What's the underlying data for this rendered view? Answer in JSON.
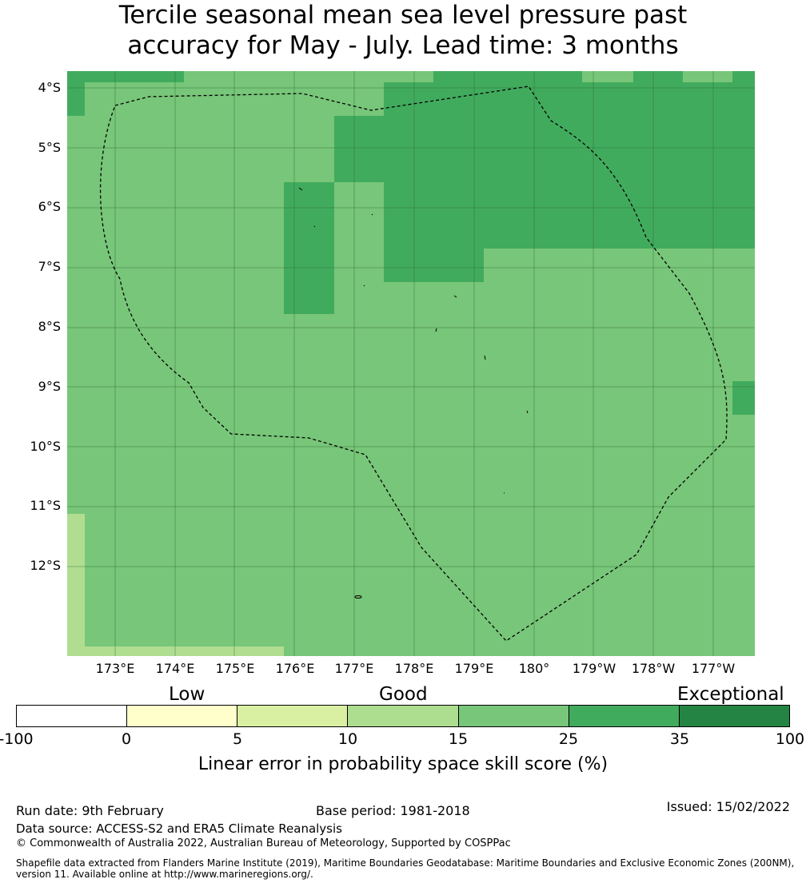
{
  "title": {
    "line1": "Tercile seasonal mean sea level pressure past",
    "line2": "accuracy for May - July. Lead time: 3 months"
  },
  "map": {
    "lat_labels": [
      "4°S",
      "5°S",
      "6°S",
      "7°S",
      "8°S",
      "9°S",
      "10°S",
      "11°S",
      "12°S"
    ],
    "lon_labels": [
      "173°E",
      "174°E",
      "175°E",
      "176°E",
      "177°E",
      "178°E",
      "179°E",
      "180°",
      "179°W",
      "178°W",
      "177°W"
    ],
    "colors": {
      "skill_10_15": "#b1dd91",
      "skill_15_25": "#78c679",
      "skill_25_35": "#41ab5d",
      "grid": "#2a6a35",
      "boundary": "#000000"
    }
  },
  "legend": {
    "categories": [
      "Low",
      "Good",
      "Exceptional"
    ],
    "ticks": [
      "-100",
      "0",
      "5",
      "10",
      "15",
      "25",
      "35",
      "100"
    ],
    "colors": [
      "#ffffff",
      "#ffffcc",
      "#d9f0a3",
      "#addd8e",
      "#78c679",
      "#41ab5d",
      "#238443"
    ],
    "label": "Linear error in probability space skill score (%)"
  },
  "footer": {
    "run_date": "Run date: 9th February",
    "base_period": "Base period: 1981-2018",
    "issued": "Issued: 15/02/2022",
    "data_source": "Data source: ACCESS-S2 and ERA5 Climate Reanalysis",
    "copyright": "© Commonwealth of Australia 2022, Australian Bureau of Meteorology, Supported by COSPPac",
    "shapefile_line1": "Shapefile data extracted from Flanders Marine Institute (2019), Maritime Boundaries Geodatabase: Maritime Boundaries and Exclusive Economic Zones (200NM),",
    "shapefile_line2": "version 11. Available online at http://www.marineregions.org/."
  }
}
